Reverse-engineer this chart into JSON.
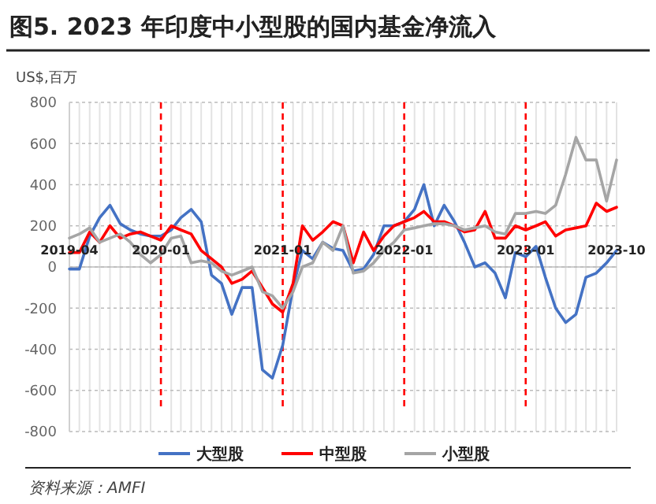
{
  "chart_data": {
    "type": "line",
    "title": "图5. 2023 年印度中小型股的国内基金净流入",
    "ylabel": "US$,百万",
    "annotations": [
      "资料来源：AMFI"
    ],
    "x": [
      "2019-04",
      "2019-05",
      "2019-06",
      "2019-07",
      "2019-08",
      "2019-09",
      "2019-10",
      "2019-11",
      "2019-12",
      "2020-01",
      "2020-02",
      "2020-03",
      "2020-04",
      "2020-05",
      "2020-06",
      "2020-07",
      "2020-08",
      "2020-09",
      "2020-10",
      "2020-11",
      "2020-12",
      "2021-01",
      "2021-02",
      "2021-03",
      "2021-04",
      "2021-05",
      "2021-06",
      "2021-07",
      "2021-08",
      "2021-09",
      "2021-10",
      "2021-11",
      "2021-12",
      "2022-01",
      "2022-02",
      "2022-03",
      "2022-04",
      "2022-05",
      "2022-06",
      "2022-07",
      "2022-08",
      "2022-09",
      "2022-10",
      "2022-11",
      "2022-12",
      "2023-01",
      "2023-02",
      "2023-03",
      "2023-04",
      "2023-05",
      "2023-06",
      "2023-07",
      "2023-08",
      "2023-09",
      "2023-10"
    ],
    "series": [
      {
        "name": "大型股",
        "color": "#4472c4",
        "values": [
          -10,
          -10,
          150,
          240,
          300,
          210,
          180,
          160,
          150,
          150,
          180,
          240,
          280,
          220,
          -40,
          -80,
          -230,
          -100,
          -100,
          -500,
          -540,
          -380,
          -100,
          80,
          40,
          120,
          90,
          80,
          -20,
          -10,
          60,
          200,
          200,
          220,
          280,
          400,
          200,
          300,
          220,
          120,
          0,
          20,
          -30,
          -150,
          70,
          50,
          100,
          -50,
          -200,
          -270,
          -230,
          -50,
          -30,
          20,
          80
        ]
      },
      {
        "name": "中型股",
        "color": "#ff0000",
        "values": [
          70,
          70,
          170,
          120,
          200,
          140,
          160,
          170,
          150,
          130,
          200,
          180,
          160,
          80,
          40,
          0,
          -80,
          -60,
          -20,
          -100,
          -180,
          -220,
          -80,
          200,
          130,
          170,
          220,
          200,
          20,
          170,
          80,
          150,
          200,
          220,
          240,
          270,
          220,
          220,
          200,
          170,
          180,
          270,
          140,
          140,
          200,
          180,
          200,
          220,
          150,
          180,
          190,
          200,
          310,
          270,
          290
        ]
      },
      {
        "name": "小型股",
        "color": "#a5a5a5",
        "values": [
          140,
          160,
          190,
          120,
          140,
          160,
          120,
          60,
          20,
          60,
          140,
          150,
          20,
          30,
          20,
          -20,
          -40,
          -20,
          0,
          -120,
          -140,
          -200,
          -120,
          0,
          20,
          120,
          80,
          200,
          -30,
          -20,
          20,
          80,
          120,
          180,
          190,
          200,
          210,
          210,
          200,
          180,
          190,
          200,
          170,
          160,
          260,
          260,
          270,
          260,
          300,
          450,
          630,
          520,
          520,
          320,
          520
        ]
      }
    ],
    "xlim": [
      "2019-04",
      "2023-10"
    ],
    "xticks": [
      "2019-04",
      {
        "value": "2019-05",
        "label": null
      },
      {
        "value": "2019-06",
        "label": null
      },
      {
        "value": "2019-07",
        "label": null
      },
      {
        "value": "2019-08",
        "label": null
      },
      {
        "value": "2019-09",
        "label": null
      },
      {
        "value": "2019-10",
        "label": null
      },
      {
        "value": "2019-11",
        "label": null
      },
      {
        "value": "2019-12",
        "label": null
      },
      {
        "value": "2020-02",
        "label": null
      },
      {
        "value": "2020-03",
        "label": null
      },
      {
        "value": "2020-04",
        "label": null
      },
      {
        "value": "2020-05",
        "label": null
      },
      {
        "value": "2020-06",
        "label": null
      },
      {
        "value": "2020-07",
        "label": null
      },
      {
        "value": "2020-08",
        "label": null
      },
      {
        "value": "2020-09",
        "label": null
      },
      {
        "value": "2020-10",
        "label": null
      },
      {
        "value": "2020-11",
        "label": null
      },
      {
        "value": "2020-12",
        "label": null
      },
      {
        "value": "2021-02",
        "label": null
      },
      {
        "value": "2021-03",
        "label": null
      },
      {
        "value": "2021-04",
        "label": null
      },
      {
        "value": "2021-05",
        "label": null
      },
      {
        "value": "2021-06",
        "label": null
      },
      {
        "value": "2021-07",
        "label": null
      },
      {
        "value": "2021-08",
        "label": null
      },
      {
        "value": "2021-09",
        "label": null
      },
      {
        "value": "2021-10",
        "label": null
      },
      {
        "value": "2021-11",
        "label": null
      },
      {
        "value": "2021-12",
        "label": null
      },
      {
        "value": "2022-02",
        "label": null
      },
      {
        "value": "2022-03",
        "label": null
      },
      {
        "value": "2022-04",
        "label": null
      },
      {
        "value": "2022-05",
        "label": null
      },
      {
        "value": "2022-06",
        "label": null
      },
      {
        "value": "2022-07",
        "label": null
      },
      {
        "value": "2022-08",
        "label": null
      },
      {
        "value": "2022-09",
        "label": null
      },
      {
        "value": "2022-10",
        "label": null
      },
      {
        "value": "2022-11",
        "label": null
      },
      {
        "value": "2022-12",
        "label": null
      },
      {
        "value": "2023-02",
        "label": null
      },
      {
        "value": "2023-03",
        "label": null
      },
      {
        "value": "2023-04",
        "label": null
      },
      {
        "value": "2023-05",
        "label": null
      },
      {
        "value": "2023-06",
        "label": null
      },
      {
        "value": "2023-07",
        "label": null
      },
      {
        "value": "2023-08",
        "label": null
      },
      {
        "value": "2023-09",
        "label": null
      },
      "2023-10"
    ],
    "ylim": [
      -800,
      800
    ],
    "yticks": [
      -800,
      -600,
      -400,
      -200,
      0,
      200,
      400,
      600,
      800
    ],
    "ref_lines": [
      {
        "axis": "x",
        "value": "2020-01",
        "label": "2020-01",
        "color": "#ff0000",
        "line_style": "dashed"
      },
      {
        "axis": "x",
        "value": "2021-01",
        "label": "2021-01",
        "color": "#ff0000",
        "line_style": "dashed"
      },
      {
        "axis": "x",
        "value": "2022-01",
        "label": "2022-01",
        "color": "#ff0000",
        "line_style": "dashed"
      },
      {
        "axis": "x",
        "value": "2023-01",
        "label": "2023-01",
        "color": "#ff0000",
        "line_style": "dashed"
      }
    ],
    "grid": true,
    "legend": "bottom",
    "marker": "none",
    "line_style": "solid"
  }
}
